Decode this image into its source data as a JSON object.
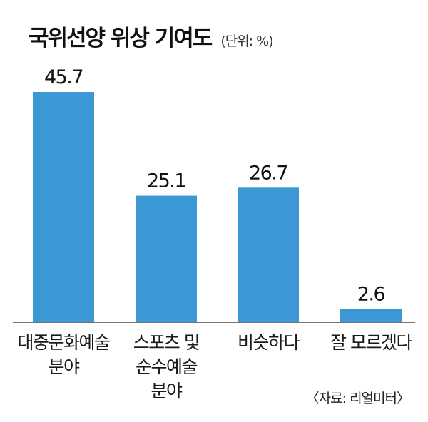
{
  "header": {
    "title": "국위선양 위상 기여도",
    "unit": "(단위: %)"
  },
  "source": "〈자료: 리얼미터〉",
  "colors": {
    "bar": "#3b98d4",
    "axis": "#777777"
  },
  "chart_data": {
    "type": "bar",
    "categories": [
      "대중문화예술 분야",
      "스포츠 및 순수예술 분야",
      "비슷하다",
      "잘 모르겠다"
    ],
    "category_lines": [
      [
        "대중문화예술",
        "분야"
      ],
      [
        "스포츠 및",
        "순수예술",
        "분야"
      ],
      [
        "비슷하다"
      ],
      [
        "잘 모르겠다"
      ]
    ],
    "values": [
      45.7,
      25.1,
      26.7,
      2.6
    ],
    "data_labels": [
      "45.7",
      "25.1",
      "26.7",
      "2.6"
    ],
    "title": "국위선양 위상 기여도",
    "ylim": [
      0,
      45.7
    ],
    "grid": false,
    "legend": "none"
  }
}
